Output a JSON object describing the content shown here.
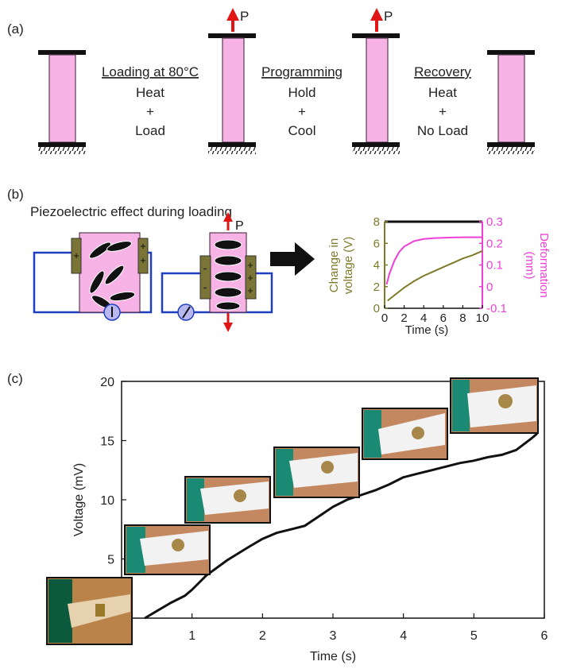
{
  "panel_a": {
    "label": "(a)",
    "force_label": "P",
    "steps": [
      {
        "title": "Loading at 80°C",
        "lines": [
          "Heat",
          "+",
          "Load"
        ]
      },
      {
        "title": "Programming",
        "lines": [
          "Hold",
          "+",
          "Cool"
        ]
      },
      {
        "title": "Recovery",
        "lines": [
          "Heat",
          "+",
          "No Load"
        ]
      }
    ]
  },
  "panel_b": {
    "label": "(b)",
    "title": "Piezoelectric effect during loading",
    "force_label": "P",
    "plus": "+",
    "minus": "-"
  },
  "colors": {
    "specimen": "#f7b3e6",
    "plate": "#111111",
    "electrode": "#7a7436",
    "wire": "#1f3fbf",
    "meter": "#b9b7f0",
    "voltage_curve": "#7e7a2a",
    "deformation_curve": "#ef3fd7",
    "arrow_red": "#e01616"
  },
  "chart_data": [
    {
      "type": "line",
      "panel": "(b)",
      "xlabel": "Time (s)",
      "ylabel_left": [
        "Change in",
        "voltage (V)"
      ],
      "ylabel_right": [
        "Deformation",
        "(mm)"
      ],
      "xlim": [
        0,
        10
      ],
      "ylim_left": [
        0,
        8
      ],
      "ylim_right": [
        -0.1,
        0.3
      ],
      "x_ticks": [
        0,
        2,
        4,
        6,
        8,
        10
      ],
      "y_ticks_left": [
        0,
        2,
        4,
        6,
        8
      ],
      "y_ticks_right": [
        -0.1,
        0,
        0.1,
        0.2,
        0.3
      ],
      "series": [
        {
          "axis": "left",
          "color": "#7e7a2a",
          "x": [
            0.3,
            1,
            2,
            3,
            4,
            5,
            6,
            7,
            8,
            9,
            10
          ],
          "y": [
            0.7,
            1.2,
            1.9,
            2.5,
            3.0,
            3.4,
            3.8,
            4.2,
            4.6,
            4.9,
            5.3
          ]
        },
        {
          "axis": "right",
          "color": "#ef3fd7",
          "x": [
            0.2,
            0.5,
            1,
            1.5,
            2,
            3,
            4,
            5,
            6,
            7,
            8,
            10
          ],
          "y": [
            0.01,
            0.06,
            0.12,
            0.16,
            0.185,
            0.21,
            0.22,
            0.224,
            0.226,
            0.227,
            0.228,
            0.228
          ]
        }
      ]
    },
    {
      "type": "line",
      "panel": "(c)",
      "label": "(c)",
      "xlabel": "Time (s)",
      "ylabel": "Voltage (mV)",
      "xlim": [
        0,
        6
      ],
      "ylim": [
        0,
        20
      ],
      "x_ticks": [
        0,
        1,
        2,
        3,
        4,
        5,
        6
      ],
      "y_ticks": [
        0,
        5,
        10,
        15,
        20
      ],
      "series": [
        {
          "color": "#111111",
          "x": [
            0.33,
            0.5,
            0.7,
            0.9,
            1.0,
            1.2,
            1.5,
            1.8,
            2.0,
            2.2,
            2.4,
            2.6,
            2.8,
            3.0,
            3.2,
            3.4,
            3.6,
            3.8,
            4.0,
            4.2,
            4.4,
            4.6,
            4.8,
            5.0,
            5.2,
            5.4,
            5.6,
            5.8,
            5.9
          ],
          "y": [
            0.0,
            0.6,
            1.3,
            1.9,
            2.4,
            3.6,
            4.9,
            6.0,
            6.7,
            7.2,
            7.5,
            7.8,
            8.6,
            9.4,
            10.0,
            10.4,
            10.8,
            11.3,
            11.9,
            12.2,
            12.5,
            12.8,
            13.1,
            13.3,
            13.6,
            13.8,
            14.2,
            15.1,
            15.6
          ]
        }
      ]
    }
  ]
}
